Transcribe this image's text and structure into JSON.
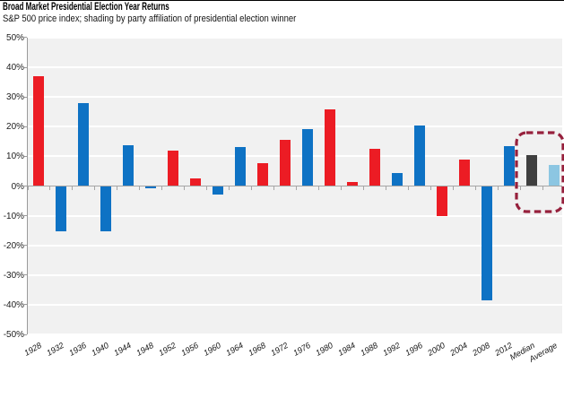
{
  "header": {
    "title": "Broad Market Presidential Election Year Returns",
    "subtitle": "S&P 500 price index; shading by party affiliation of presidential election winner"
  },
  "chart_data": {
    "type": "bar",
    "title": "Broad Market Presidential Election Year Returns",
    "subtitle": "S&P 500 price index; shading by party affiliation of presidential election winner",
    "ylabel": "",
    "xlabel": "",
    "ylim": [
      -50,
      50
    ],
    "ytick_step": 10,
    "ytick_labels": [
      "50%",
      "40%",
      "30%",
      "20%",
      "10%",
      "0%",
      "-10%",
      "-20%",
      "-30%",
      "-40%",
      "-50%"
    ],
    "ytick_values": [
      50,
      40,
      30,
      20,
      10,
      0,
      -10,
      -20,
      -30,
      -40,
      -50
    ],
    "grid": true,
    "legend": "none",
    "bars": [
      {
        "label": "1928",
        "value": 37.0,
        "party": "republican"
      },
      {
        "label": "1932",
        "value": -15.1,
        "party": "democrat"
      },
      {
        "label": "1936",
        "value": 27.9,
        "party": "democrat"
      },
      {
        "label": "1940",
        "value": -15.3,
        "party": "democrat"
      },
      {
        "label": "1944",
        "value": 13.8,
        "party": "democrat"
      },
      {
        "label": "1948",
        "value": -0.7,
        "party": "democrat"
      },
      {
        "label": "1952",
        "value": 11.8,
        "party": "republican"
      },
      {
        "label": "1956",
        "value": 2.6,
        "party": "republican"
      },
      {
        "label": "1960",
        "value": -3.0,
        "party": "democrat"
      },
      {
        "label": "1964",
        "value": 13.0,
        "party": "democrat"
      },
      {
        "label": "1968",
        "value": 7.7,
        "party": "republican"
      },
      {
        "label": "1972",
        "value": 15.6,
        "party": "republican"
      },
      {
        "label": "1976",
        "value": 19.1,
        "party": "democrat"
      },
      {
        "label": "1980",
        "value": 25.8,
        "party": "republican"
      },
      {
        "label": "1984",
        "value": 1.4,
        "party": "republican"
      },
      {
        "label": "1988",
        "value": 12.4,
        "party": "republican"
      },
      {
        "label": "1992",
        "value": 4.5,
        "party": "democrat"
      },
      {
        "label": "1996",
        "value": 20.3,
        "party": "democrat"
      },
      {
        "label": "2000",
        "value": -10.1,
        "party": "republican"
      },
      {
        "label": "2004",
        "value": 9.0,
        "party": "republican"
      },
      {
        "label": "2008",
        "value": -38.5,
        "party": "democrat"
      },
      {
        "label": "2012",
        "value": 13.4,
        "party": "democrat"
      },
      {
        "label": "Median",
        "value": 10.4,
        "party": "median"
      },
      {
        "label": "Average",
        "value": 7.0,
        "party": "average"
      }
    ],
    "colors": {
      "republican": "#ec1c24",
      "democrat": "#0e72c4",
      "median": "#3f3f3f",
      "average": "#8cc6e2",
      "highlight_border": "#96203c",
      "plot_bg": "#f1f1f1",
      "gridline": "#ffffff",
      "axis": "#9a9a9a",
      "zero_line": "#a6a6a6"
    },
    "highlight_box": {
      "categories": [
        "Median",
        "Average"
      ]
    }
  }
}
